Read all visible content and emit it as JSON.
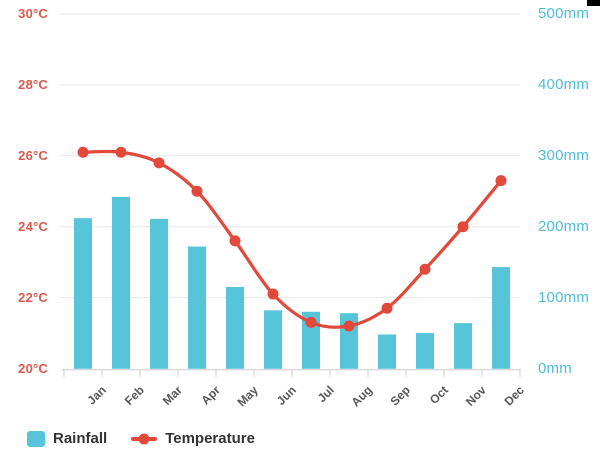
{
  "chart_data": {
    "type": "bar+line",
    "categories": [
      "Jan",
      "Feb",
      "Mar",
      "Apr",
      "May",
      "Jun",
      "Jul",
      "Aug",
      "Sep",
      "Oct",
      "Nov",
      "Dec"
    ],
    "series": [
      {
        "name": "Rainfall",
        "type": "bar",
        "unit": "mm",
        "axis": "right",
        "values": [
          212,
          242,
          211,
          172,
          115,
          82,
          80,
          78,
          48,
          50,
          64,
          143
        ]
      },
      {
        "name": "Temperature",
        "type": "line",
        "unit": "°C",
        "axis": "left",
        "values": [
          26.1,
          26.1,
          25.8,
          25.0,
          23.6,
          22.1,
          21.3,
          21.2,
          21.7,
          22.8,
          24.0,
          25.3
        ]
      }
    ],
    "left_axis": {
      "title": "",
      "min": 20,
      "max": 30,
      "step": 2,
      "tick_labels": [
        "20°C",
        "22°C",
        "24°C",
        "26°C",
        "28°C",
        "30°C"
      ]
    },
    "right_axis": {
      "title": "",
      "min": 0,
      "max": 500,
      "step": 100,
      "tick_labels": [
        "0mm",
        "100mm",
        "200mm",
        "300mm",
        "400mm",
        "500mm"
      ]
    },
    "legend": {
      "position": "bottom-left",
      "items": [
        "Rainfall",
        "Temperature"
      ]
    },
    "grid": true,
    "colors": {
      "bar": "#56c5d9",
      "line": "#e2493a",
      "marker": "#e2493a",
      "left_tick_text": "#d95a4e",
      "right_tick_text": "#4dbed4",
      "x_tick_text": "#585858",
      "gridline": "#e7e7e7",
      "axis_line": "#cccccc",
      "legend_text": "#333333"
    }
  }
}
